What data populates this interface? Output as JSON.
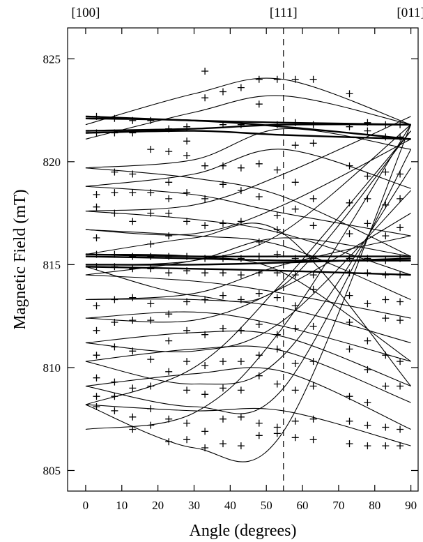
{
  "chart_data": {
    "type": "line",
    "xlabel": "Angle (degrees)",
    "ylabel": "Magnetic Field (mT)",
    "xlim": [
      -5,
      92
    ],
    "ylim": [
      804,
      826.5
    ],
    "x_ticks": [
      0,
      10,
      20,
      30,
      40,
      50,
      60,
      70,
      80,
      90
    ],
    "y_ticks": [
      805,
      810,
      815,
      820,
      825
    ],
    "top_labels": [
      {
        "text": "[100]",
        "x": 0
      },
      {
        "text": "[111]",
        "x": 54.74
      },
      {
        "text": "[011]",
        "x": 90
      }
    ],
    "reference_line": {
      "x": 54.74,
      "style": "dashed"
    },
    "grid": false,
    "line_color": "#000000",
    "fitted_curves": [
      {
        "name": "c1",
        "y": [
          808.2,
          806.1,
          806.9,
          821.8
        ],
        "weight": "thin"
      },
      {
        "name": "c2",
        "y": [
          808.2,
          807.9,
          807.9,
          806.2
        ],
        "weight": "thin"
      },
      {
        "name": "c3",
        "y": [
          809.1,
          808.1,
          809.0,
          820.6
        ],
        "weight": "thin"
      },
      {
        "name": "c4",
        "y": [
          809.1,
          809.7,
          809.8,
          807.0
        ],
        "weight": "thin"
      },
      {
        "name": "c5",
        "y": [
          810.3,
          809.2,
          810.6,
          819.7
        ],
        "weight": "thin"
      },
      {
        "name": "c6",
        "y": [
          810.3,
          810.9,
          810.8,
          808.3
        ],
        "weight": "thin"
      },
      {
        "name": "c7",
        "y": [
          811.2,
          810.8,
          812.3,
          818.6
        ],
        "weight": "thin"
      },
      {
        "name": "c8",
        "y": [
          811.2,
          811.7,
          811.5,
          809.1
        ],
        "weight": "thin"
      },
      {
        "name": "c9",
        "y": [
          812.4,
          812.3,
          813.9,
          817.5
        ],
        "weight": "thin"
      },
      {
        "name": "c10",
        "y": [
          812.4,
          812.7,
          812.0,
          810.3
        ],
        "weight": "thin"
      },
      {
        "name": "c11",
        "y": [
          813.3,
          813.6,
          815.0,
          816.4
        ],
        "weight": "thin"
      },
      {
        "name": "c12",
        "y": [
          813.3,
          813.3,
          812.9,
          811.2
        ],
        "weight": "thin"
      },
      {
        "name": "c13",
        "y": [
          814.5,
          815.2,
          816.3,
          815.4
        ],
        "weight": "thin"
      },
      {
        "name": "c14",
        "y": [
          814.5,
          814.2,
          813.6,
          812.4
        ],
        "weight": "thin"
      },
      {
        "name": "c15",
        "y": [
          816.7,
          816.4,
          815.9,
          813.3
        ],
        "weight": "thin"
      },
      {
        "name": "c16",
        "y": [
          816.7,
          816.5,
          817.9,
          821.1
        ],
        "weight": "thin"
      },
      {
        "name": "c17",
        "y": [
          817.6,
          817.2,
          816.5,
          814.5
        ],
        "weight": "thin"
      },
      {
        "name": "c18",
        "y": [
          817.6,
          817.9,
          819.4,
          822.2
        ],
        "weight": "thin"
      },
      {
        "name": "c19",
        "y": [
          818.8,
          818.4,
          817.5,
          816.4
        ],
        "weight": "thin"
      },
      {
        "name": "c20",
        "y": [
          818.8,
          819.4,
          820.6,
          818.7
        ],
        "weight": "thin"
      },
      {
        "name": "c21",
        "y": [
          819.7,
          819.2,
          818.3,
          815.4
        ],
        "weight": "thin"
      },
      {
        "name": "c22",
        "y": [
          819.7,
          820.1,
          821.6,
          820.6
        ],
        "weight": "thin"
      },
      {
        "name": "c23",
        "y": [
          815.0,
          815.2,
          816.6,
          821.8
        ],
        "weight": "thin"
      },
      {
        "name": "c24",
        "y": [
          815.5,
          815.4,
          814.6,
          810.3
        ],
        "weight": "thin"
      },
      {
        "name": "c25",
        "y": [
          814.9,
          813.5,
          814.0,
          821.5
        ],
        "weight": "thin"
      },
      {
        "name": "c26",
        "y": [
          815.5,
          816.3,
          816.5,
          809.1
        ],
        "weight": "thin"
      },
      {
        "name": "c27",
        "y": [
          807.0,
          807.8,
          812.0,
          821.8
        ],
        "weight": "thin"
      },
      {
        "name": "c28",
        "y": [
          808.2,
          810.0,
          814.2,
          821.5
        ],
        "weight": "thin"
      },
      {
        "name": "h1",
        "y": [
          822.2,
          822.0,
          821.9,
          821.8
        ],
        "weight": "thick"
      },
      {
        "name": "h2",
        "y": [
          822.1,
          822.0,
          821.7,
          821.1
        ],
        "weight": "thick"
      },
      {
        "name": "h3",
        "y": [
          821.5,
          821.6,
          821.8,
          821.8
        ],
        "weight": "thick"
      },
      {
        "name": "h4",
        "y": [
          821.4,
          821.5,
          821.3,
          821.1
        ],
        "weight": "thick"
      },
      {
        "name": "h5",
        "y": [
          815.5,
          815.4,
          815.4,
          815.4
        ],
        "weight": "thick"
      },
      {
        "name": "h6",
        "y": [
          815.4,
          815.3,
          815.2,
          815.2
        ],
        "weight": "thick"
      },
      {
        "name": "h7",
        "y": [
          815.0,
          815.0,
          815.1,
          815.3
        ],
        "weight": "thick"
      },
      {
        "name": "h8",
        "y": [
          814.9,
          814.8,
          814.7,
          814.5
        ],
        "weight": "thick"
      },
      {
        "name": "dome1",
        "y": [
          821.8,
          823.3,
          824.0,
          821.8
        ],
        "weight": "thin"
      },
      {
        "name": "dome2",
        "y": [
          821.1,
          822.4,
          823.2,
          821.8
        ],
        "weight": "thin"
      }
    ],
    "measured_points": [
      {
        "x": 3,
        "y": [
          822.2,
          821.4,
          818.4,
          817.8,
          816.3,
          815.5,
          814.9,
          813.0,
          811.8,
          810.6,
          809.5,
          808.6,
          808.1
        ]
      },
      {
        "x": 8,
        "y": [
          822.1,
          821.4,
          819.5,
          818.5,
          817.5,
          815.5,
          814.9,
          813.3,
          812.2,
          811.0,
          809.3,
          808.6,
          807.9
        ]
      },
      {
        "x": 13,
        "y": [
          822.0,
          821.4,
          819.4,
          818.5,
          817.1,
          815.4,
          814.8,
          813.4,
          812.3,
          810.8,
          809.0,
          807.6,
          807.0
        ]
      },
      {
        "x": 18,
        "y": [
          822.0,
          820.6,
          818.5,
          817.5,
          816.0,
          815.4,
          814.8,
          813.1,
          812.3,
          810.4,
          809.1,
          808.0,
          807.2
        ]
      },
      {
        "x": 23,
        "y": [
          821.6,
          820.5,
          819.0,
          818.2,
          817.5,
          816.4,
          815.4,
          814.6,
          812.6,
          811.3,
          809.8,
          807.5,
          806.4
        ]
      },
      {
        "x": 28,
        "y": [
          821.7,
          821.0,
          820.3,
          818.5,
          817.1,
          815.4,
          814.7,
          813.2,
          811.8,
          810.3,
          808.9,
          807.3,
          806.5
        ]
      },
      {
        "x": 33,
        "y": [
          824.4,
          823.1,
          819.8,
          818.2,
          816.9,
          815.3,
          814.6,
          813.3,
          811.6,
          810.1,
          808.7,
          806.9,
          806.1
        ]
      },
      {
        "x": 38,
        "y": [
          823.4,
          821.8,
          819.8,
          818.9,
          817.0,
          815.3,
          814.6,
          813.5,
          811.9,
          810.3,
          809.0,
          807.5,
          806.3
        ]
      },
      {
        "x": 43,
        "y": [
          823.6,
          821.8,
          819.7,
          818.6,
          817.1,
          815.3,
          814.5,
          813.3,
          811.8,
          810.3,
          808.9,
          807.6,
          806.2
        ]
      },
      {
        "x": 48,
        "y": [
          824.0,
          822.8,
          819.9,
          818.3,
          816.1,
          815.4,
          814.6,
          813.6,
          812.1,
          810.6,
          809.6,
          807.3,
          806.7
        ]
      },
      {
        "x": 53,
        "y": [
          824.0,
          821.8,
          819.6,
          817.4,
          816.7,
          815.5,
          814.6,
          813.4,
          811.6,
          810.9,
          809.2,
          807.1,
          806.8
        ]
      },
      {
        "x": 58,
        "y": [
          824.0,
          821.9,
          820.8,
          819.0,
          817.7,
          815.3,
          814.5,
          813.0,
          811.9,
          810.2,
          808.9,
          807.4,
          806.6
        ]
      },
      {
        "x": 63,
        "y": [
          824.0,
          821.8,
          820.9,
          818.2,
          816.9,
          815.3,
          814.5,
          813.8,
          812.0,
          810.3,
          809.1,
          807.5,
          806.5
        ]
      },
      {
        "x": 73,
        "y": [
          823.3,
          821.7,
          819.8,
          818.0,
          816.5,
          815.3,
          814.6,
          813.5,
          812.2,
          810.9,
          808.6,
          807.4,
          806.3
        ]
      },
      {
        "x": 78,
        "y": [
          821.9,
          821.5,
          819.3,
          818.2,
          817.0,
          815.3,
          814.6,
          813.1,
          811.3,
          809.9,
          808.3,
          807.2,
          806.2
        ]
      },
      {
        "x": 83,
        "y": [
          821.8,
          821.2,
          819.5,
          817.9,
          816.4,
          815.2,
          814.5,
          813.3,
          812.4,
          810.6,
          809.1,
          807.1,
          806.2
        ]
      },
      {
        "x": 87,
        "y": [
          821.8,
          821.2,
          819.4,
          818.2,
          816.8,
          815.3,
          814.5,
          813.2,
          812.3,
          810.3,
          809.1,
          807.0,
          806.2
        ]
      }
    ]
  }
}
